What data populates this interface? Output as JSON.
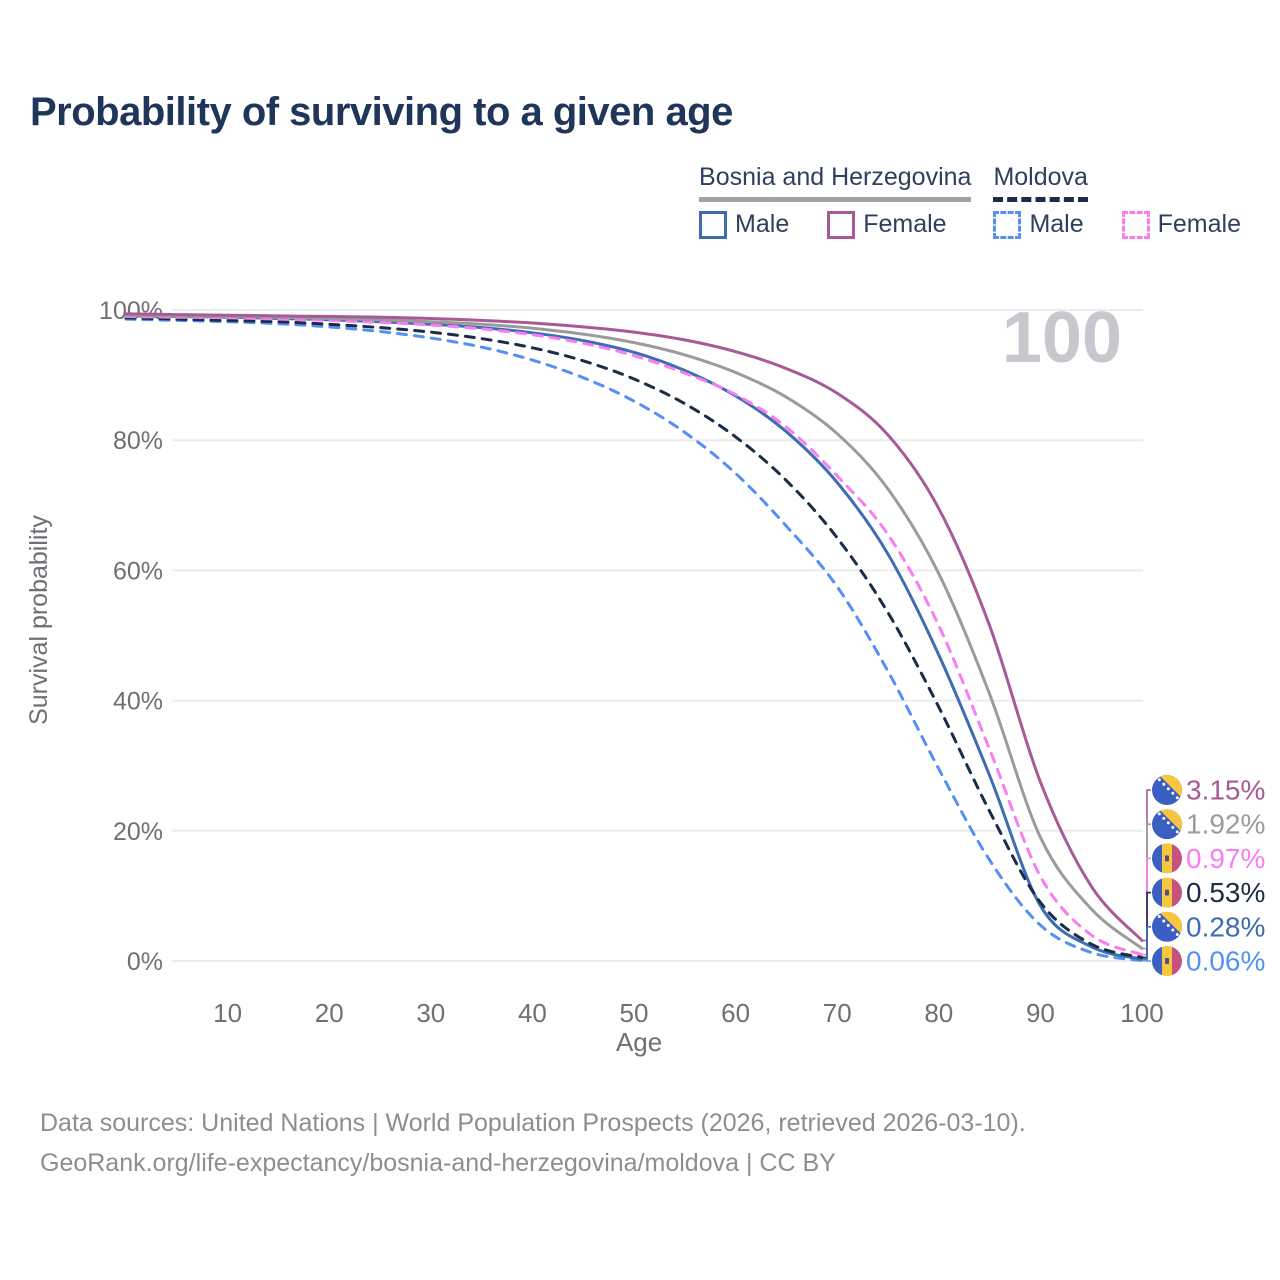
{
  "title": "Probability of surviving to a given age",
  "watermark": "100",
  "colors": {
    "title": "#20355a",
    "axis_text": "#6f6f75",
    "gridline": "#ececee",
    "watermark": "#cac6cd",
    "footer_text": "#8d8d92",
    "bosnia_male": "#3e6cb2",
    "bosnia_female": "#a85a96",
    "bosnia_total": "#9b9b9b",
    "moldova_male": "#5590f5",
    "moldova_female": "#f97df1",
    "moldova_total": "#1b2c48"
  },
  "legend": {
    "groups": [
      {
        "label": "Bosnia and Herzegovina",
        "line_style": "solid",
        "underline_color": "#a3a3a3",
        "items": [
          {
            "label": "Male",
            "color": "#3e6cb2",
            "style": "solid"
          },
          {
            "label": "Female",
            "color": "#a85a96",
            "style": "solid"
          }
        ]
      },
      {
        "label": "Moldova",
        "line_style": "dashed",
        "underline_color": "#1b2c48",
        "items": [
          {
            "label": "Male",
            "color": "#5590f5",
            "style": "dashed"
          },
          {
            "label": "Female",
            "color": "#f97df1",
            "style": "dashed"
          }
        ]
      }
    ]
  },
  "chart_data": {
    "type": "line",
    "title": "Probability of surviving to a given age",
    "xlabel": "Age",
    "ylabel": "Survival probability",
    "xlim": [
      0,
      100
    ],
    "ylim": [
      0,
      100
    ],
    "grid": "horizontal",
    "x_ticks": [
      10,
      20,
      30,
      40,
      50,
      60,
      70,
      80,
      90,
      100
    ],
    "y_ticks": [
      {
        "value": 0,
        "label": "0%"
      },
      {
        "value": 20,
        "label": "20%"
      },
      {
        "value": 40,
        "label": "40%"
      },
      {
        "value": 60,
        "label": "60%"
      },
      {
        "value": 80,
        "label": "80%"
      },
      {
        "value": 100,
        "label": "100%"
      }
    ],
    "x": [
      0,
      5,
      10,
      15,
      20,
      25,
      30,
      35,
      40,
      45,
      50,
      55,
      60,
      65,
      70,
      75,
      80,
      85,
      90,
      95,
      100
    ],
    "series": [
      {
        "name": "Bosnia and Herzegovina Female",
        "country": "Bosnia and Herzegovina",
        "sex": "Female",
        "color": "#a85a96",
        "dashed": false,
        "flag": "bosnia-and-herzegovina-flag",
        "end_label": "3.15%",
        "values": [
          99.4,
          99.3,
          99.2,
          99.1,
          99.0,
          98.9,
          98.7,
          98.4,
          98.0,
          97.4,
          96.6,
          95.4,
          93.6,
          91.0,
          87.2,
          80.8,
          69.5,
          51.5,
          27.5,
          11.5,
          3.15
        ]
      },
      {
        "name": "Bosnia and Herzegovina",
        "country": "Bosnia and Herzegovina",
        "sex": "Both sexes",
        "color": "#9b9b9b",
        "dashed": false,
        "flag": "bosnia-and-herzegovina-flag",
        "end_label": "1.92%",
        "values": [
          99.2,
          99.1,
          99.0,
          98.9,
          98.7,
          98.5,
          98.2,
          97.8,
          97.2,
          96.3,
          95.0,
          93.1,
          90.4,
          86.6,
          81.0,
          72.5,
          59.5,
          41.0,
          19.0,
          8.0,
          1.92
        ]
      },
      {
        "name": "Moldova Female",
        "country": "Moldova",
        "sex": "Female",
        "color": "#f97df1",
        "dashed": true,
        "flag": "moldova-flag",
        "end_label": "0.97%",
        "values": [
          99.0,
          98.9,
          98.8,
          98.6,
          98.4,
          98.1,
          97.7,
          97.1,
          96.2,
          94.9,
          93.0,
          90.3,
          87.0,
          82.0,
          74.5,
          65.5,
          51.5,
          32.5,
          13.0,
          4.0,
          0.97
        ]
      },
      {
        "name": "Moldova",
        "country": "Moldova",
        "sex": "Both sexes",
        "color": "#1b2c48",
        "dashed": true,
        "flag": "moldova-flag",
        "end_label": "0.53%",
        "values": [
          98.8,
          98.6,
          98.4,
          98.2,
          97.8,
          97.3,
          96.6,
          95.6,
          94.2,
          92.2,
          89.4,
          85.6,
          80.5,
          73.8,
          65.0,
          53.5,
          39.0,
          23.0,
          9.0,
          2.6,
          0.53
        ]
      },
      {
        "name": "Bosnia and Herzegovina Male",
        "country": "Bosnia and Herzegovina",
        "sex": "Male",
        "color": "#3e6cb2",
        "dashed": false,
        "flag": "bosnia-and-herzegovina-flag",
        "end_label": "0.28%",
        "values": [
          99.1,
          99.0,
          98.9,
          98.7,
          98.5,
          98.2,
          97.8,
          97.3,
          96.5,
          95.3,
          93.5,
          90.7,
          86.8,
          81.3,
          73.5,
          62.5,
          47.0,
          28.5,
          8.5,
          2.2,
          0.28
        ]
      },
      {
        "name": "Moldova Male",
        "country": "Moldova",
        "sex": "Male",
        "color": "#5590f5",
        "dashed": true,
        "flag": "moldova-flag",
        "end_label": "0.06%",
        "values": [
          98.6,
          98.4,
          98.2,
          97.9,
          97.4,
          96.7,
          95.7,
          94.3,
          92.3,
          89.6,
          86.0,
          81.2,
          74.9,
          66.8,
          57.5,
          44.5,
          29.5,
          15.5,
          5.5,
          1.3,
          0.06
        ]
      }
    ]
  },
  "footer": {
    "line1": "Data sources: United Nations | World Population Prospects (2026, retrieved 2026-03-10).",
    "line2": "GeoRank.org/life-expectancy/bosnia-and-herzegovina/moldova | CC BY"
  }
}
